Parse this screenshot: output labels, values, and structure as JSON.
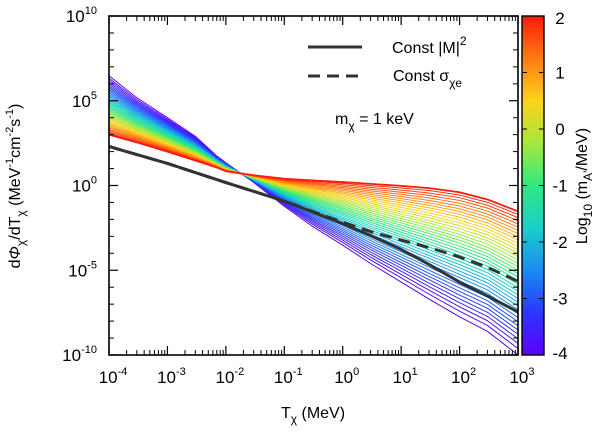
{
  "chart_data": {
    "type": "line",
    "x_scale": "log",
    "y_scale": "log",
    "xlim": [
      0.0001,
      1000
    ],
    "ylim": [
      1e-10,
      10000000000.0
    ],
    "x_ticks": [
      {
        "value": 0.0001,
        "base": "10",
        "exp": "-4"
      },
      {
        "value": 0.001,
        "base": "10",
        "exp": "-3"
      },
      {
        "value": 0.01,
        "base": "10",
        "exp": "-2"
      },
      {
        "value": 0.1,
        "base": "10",
        "exp": "-1"
      },
      {
        "value": 1,
        "base": "10",
        "exp": "0"
      },
      {
        "value": 10,
        "base": "10",
        "exp": "1"
      },
      {
        "value": 100,
        "base": "10",
        "exp": "2"
      },
      {
        "value": 1000,
        "base": "10",
        "exp": "3"
      }
    ],
    "y_ticks": [
      {
        "value": 1e-10,
        "base": "10",
        "exp": "-10"
      },
      {
        "value": 1e-05,
        "base": "10",
        "exp": "-5"
      },
      {
        "value": 1,
        "base": "10",
        "exp": "0"
      },
      {
        "value": 100000.0,
        "base": "10",
        "exp": "5"
      },
      {
        "value": 10000000000.0,
        "base": "10",
        "exp": "10"
      }
    ],
    "xlabel": {
      "main": "T",
      "sub": "χ",
      "unit": " (MeV)"
    },
    "ylabel": {
      "d": "d",
      "phi": "Φ",
      "sub": "χ",
      "mid": "/dT",
      "sub2": "χ",
      "unit": " (MeV",
      "e1": "-1",
      "cm": "cm",
      "e2": "-2",
      "s": "s",
      "e3": "-1",
      "close": ")"
    },
    "annotation": {
      "m": "m",
      "sub": "χ",
      "rest": " = 1 keV"
    },
    "legend": {
      "position": "top-right",
      "entries": [
        {
          "style": "solid",
          "color": "#333333",
          "label": "Const |M|",
          "sup": "2"
        },
        {
          "style": "dashed",
          "color": "#333333",
          "label": "Const σ",
          "sub": "χe"
        }
      ]
    },
    "colorbar": {
      "label": {
        "pre": "Log",
        "sub": "10",
        "mid": " (m",
        "sub2": "A'",
        "post": "/MeV)"
      },
      "range": [
        -4,
        2
      ],
      "ticks": [
        {
          "value": 2,
          "label": "2"
        },
        {
          "value": 1,
          "label": "1"
        },
        {
          "value": 0,
          "label": "0"
        },
        {
          "value": -1,
          "label": "-1"
        },
        {
          "value": -2,
          "label": "-2"
        },
        {
          "value": -3,
          "label": "-3"
        },
        {
          "value": -4,
          "label": "-4"
        }
      ],
      "colors": [
        "#5b00ff",
        "#2c36ff",
        "#1a8cf2",
        "#1ad0c8",
        "#30e880",
        "#a6e83c",
        "#ffd21a",
        "#ff7a14",
        "#ff1a0a"
      ]
    },
    "family": {
      "param": "log10 mA'/MeV",
      "count": 40,
      "param_range": [
        -4,
        2
      ],
      "x": [
        0.0001,
        0.0003,
        0.001,
        0.003,
        0.0068,
        0.01,
        0.03,
        0.1,
        0.3,
        1,
        3,
        10,
        30,
        100,
        300,
        1000
      ],
      "light_mediator_y": [
        3000000.0,
        150000.0,
        10000.0,
        800,
        60,
        22,
        1.5,
        0.06,
        0.004,
        0.0003,
        2.5e-05,
        2e-06,
        2e-07,
        1.8e-08,
        2.5e-09,
        1e-10
      ],
      "heavy_mediator_y": [
        1000.0,
        350,
        100,
        30,
        12,
        7,
        4,
        2.5,
        2.0,
        1.6,
        1.25,
        0.95,
        0.7,
        0.4,
        0.15,
        0.03
      ]
    },
    "series": [
      {
        "name": "Const |M|^2",
        "style": "solid",
        "x": [
          0.0001,
          0.001,
          0.01,
          0.1,
          0.3,
          1,
          3,
          10,
          30,
          100,
          300,
          1000
        ],
        "y": [
          200,
          20,
          1.5,
          0.12,
          0.028,
          0.0055,
          0.0011,
          0.00017,
          2.2e-05,
          2e-06,
          3e-07,
          3.5e-08
        ]
      },
      {
        "name": "Const σχe",
        "style": "dashed",
        "x": [
          0.0001,
          0.001,
          0.01,
          0.1,
          0.3,
          1,
          3,
          10,
          30,
          100,
          300,
          1000
        ],
        "y": [
          200,
          20,
          1.5,
          0.12,
          0.03,
          0.0068,
          0.0019,
          0.0006,
          0.00022,
          6e-05,
          1.5e-05,
          2.2e-06
        ]
      }
    ]
  }
}
